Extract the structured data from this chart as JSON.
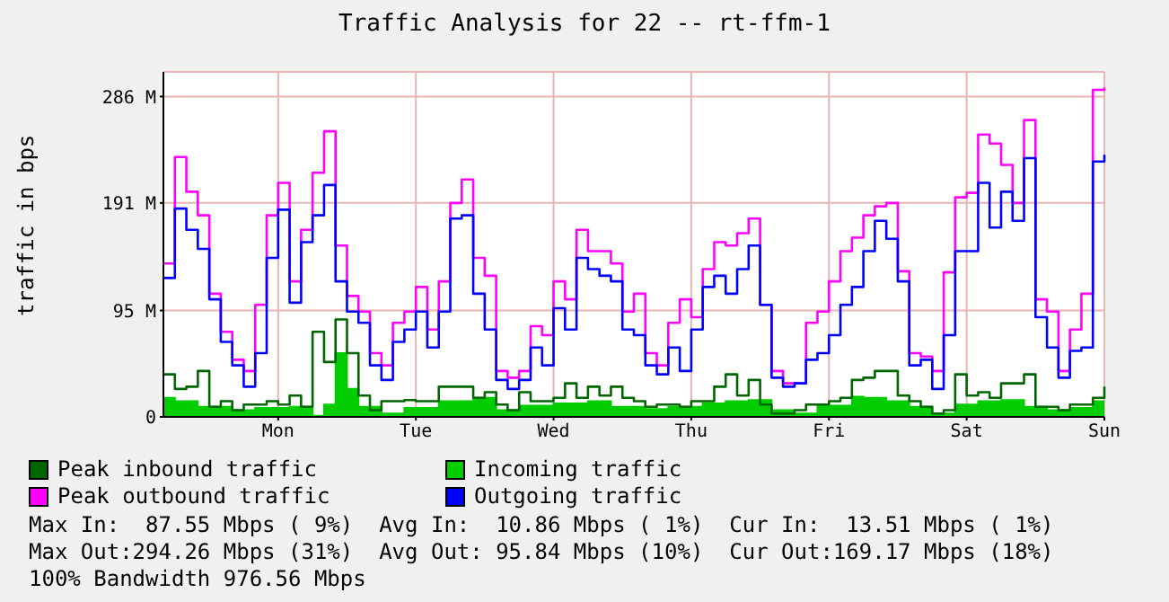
{
  "chart_data": {
    "type": "step",
    "title": "Traffic Analysis for 22 -- rt-ffm-1",
    "ylabel": "traffic in bps",
    "categories": [
      null,
      null,
      null,
      null,
      null,
      null,
      null,
      null,
      null,
      null,
      "Mon",
      null,
      null,
      null,
      null,
      null,
      null,
      null,
      null,
      null,
      null,
      null,
      "Tue",
      null,
      null,
      null,
      null,
      null,
      null,
      null,
      null,
      null,
      null,
      null,
      "Wed",
      null,
      null,
      null,
      null,
      null,
      null,
      null,
      null,
      null,
      null,
      null,
      "Thu",
      null,
      null,
      null,
      null,
      null,
      null,
      null,
      null,
      null,
      null,
      null,
      "Fri",
      null,
      null,
      null,
      null,
      null,
      null,
      null,
      null,
      null,
      null,
      null,
      "Sat",
      null,
      null,
      null,
      null,
      null,
      null,
      null,
      null,
      null,
      null,
      null,
      "Sun"
    ],
    "ylim": [
      0,
      308
    ],
    "yticks": [
      {
        "value": 0,
        "label": "0"
      },
      {
        "value": 95,
        "label": "95 M"
      },
      {
        "value": 191,
        "label": "191 M"
      },
      {
        "value": 286,
        "label": "286 M"
      }
    ],
    "grid": true,
    "legend": "bottom",
    "series": [
      {
        "name": "Peak inbound traffic",
        "color": "#006600",
        "values": [
          38,
          25,
          27,
          41,
          9,
          14,
          6,
          11,
          11,
          14,
          11,
          19,
          9,
          76,
          49,
          87,
          57,
          19,
          6,
          14,
          14,
          15,
          14,
          14,
          27,
          27,
          27,
          17,
          22,
          11,
          6,
          22,
          14,
          14,
          17,
          30,
          17,
          27,
          19,
          27,
          17,
          14,
          9,
          11,
          11,
          9,
          14,
          14,
          27,
          38,
          19,
          33,
          11,
          3,
          3,
          6,
          11,
          11,
          14,
          17,
          33,
          35,
          41,
          41,
          19,
          14,
          9,
          3,
          6,
          38,
          19,
          22,
          17,
          30,
          30,
          38,
          9,
          9,
          6,
          11,
          11,
          17,
          27
        ]
      },
      {
        "name": "Incoming traffic",
        "type": "area",
        "color": "#00cc00",
        "values": [
          17,
          14,
          14,
          9,
          9,
          9,
          6,
          6,
          8,
          8,
          8,
          9,
          9,
          1,
          11,
          57,
          25,
          9,
          9,
          3,
          3,
          8,
          8,
          8,
          14,
          14,
          14,
          17,
          17,
          6,
          6,
          10,
          10,
          10,
          12,
          12,
          12,
          14,
          14,
          9,
          9,
          9,
          7,
          7,
          9,
          9,
          9,
          12,
          12,
          14,
          14,
          15,
          15,
          6,
          6,
          3,
          3,
          10,
          10,
          10,
          18,
          17,
          17,
          14,
          14,
          9,
          9,
          3,
          3,
          11,
          11,
          14,
          14,
          15,
          15,
          9,
          9,
          6,
          6,
          8,
          8,
          14,
          14
        ]
      },
      {
        "name": "Peak outbound traffic",
        "color": "#ff00ff",
        "values": [
          137,
          232,
          201,
          180,
          110,
          76,
          51,
          41,
          100,
          180,
          209,
          121,
          167,
          218,
          255,
          153,
          108,
          94,
          57,
          46,
          84,
          94,
          116,
          78,
          121,
          191,
          212,
          142,
          126,
          41,
          35,
          41,
          81,
          73,
          121,
          105,
          167,
          148,
          148,
          137,
          94,
          110,
          57,
          46,
          84,
          105,
          89,
          132,
          156,
          153,
          164,
          177,
          100,
          41,
          30,
          30,
          84,
          94,
          121,
          148,
          160,
          180,
          188,
          191,
          130,
          57,
          54,
          41,
          129,
          196,
          200,
          252,
          244,
          225,
          191,
          265,
          105,
          94,
          41,
          78,
          110,
          292,
          294
        ]
      },
      {
        "name": "Outgoing traffic",
        "color": "#0000ff",
        "values": [
          124,
          186,
          167,
          150,
          105,
          67,
          46,
          27,
          57,
          142,
          185,
          102,
          156,
          180,
          207,
          121,
          94,
          84,
          46,
          33,
          67,
          78,
          94,
          62,
          94,
          177,
          180,
          110,
          78,
          33,
          25,
          33,
          62,
          46,
          97,
          78,
          142,
          132,
          126,
          121,
          78,
          73,
          46,
          38,
          62,
          41,
          78,
          116,
          126,
          110,
          132,
          153,
          100,
          35,
          27,
          30,
          51,
          57,
          73,
          100,
          116,
          148,
          175,
          159,
          121,
          46,
          51,
          25,
          73,
          148,
          148,
          209,
          169,
          201,
          175,
          231,
          89,
          62,
          35,
          59,
          62,
          228,
          234
        ]
      }
    ],
    "annotations": [
      "Max In:  87.55 Mbps ( 9%)  Avg In:  10.86 Mbps ( 1%)  Cur In:  13.51 Mbps ( 1%)",
      "Max Out:294.26 Mbps (31%)  Avg Out: 95.84 Mbps (10%)  Cur Out:169.17 Mbps (18%)",
      "100% Bandwidth 976.56 Mbps"
    ]
  }
}
